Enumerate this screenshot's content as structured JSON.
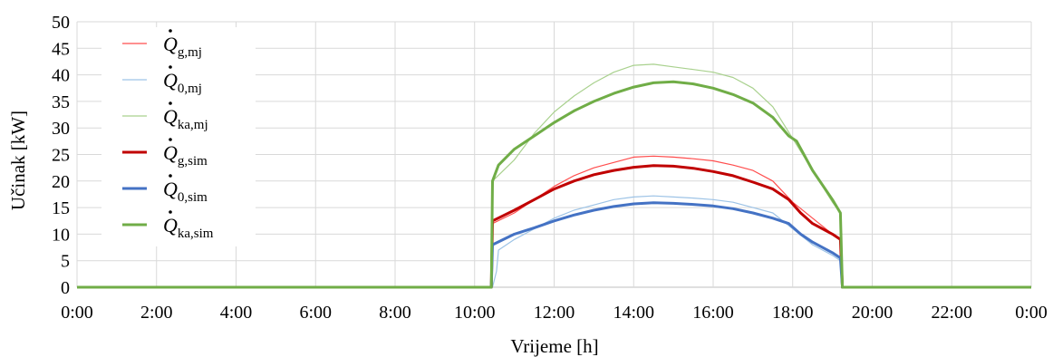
{
  "chart_data": {
    "type": "line",
    "xlabel": "Vrijeme [h]",
    "ylabel": "Učinak [kW]",
    "ylim": [
      0,
      50
    ],
    "y_ticks": [
      "0",
      "5",
      "10",
      "15",
      "20",
      "25",
      "30",
      "35",
      "40",
      "45",
      "50"
    ],
    "xlim": [
      0,
      24
    ],
    "x_ticks": [
      "0:00",
      "2:00",
      "4:00",
      "6:00",
      "8:00",
      "10:00",
      "12:00",
      "14:00",
      "16:00",
      "18:00",
      "20:00",
      "22:00",
      "0:00"
    ],
    "grid": true,
    "legend_position": "top-left",
    "series": [
      {
        "name": "Q̇g,mj",
        "symbol": "Q",
        "subscript": "g,mj",
        "color": "#ff4d4d",
        "weight": "thin",
        "x": [
          0,
          10.42,
          10.45,
          11,
          11.5,
          12,
          12.5,
          13,
          13.5,
          14,
          14.5,
          15,
          15.5,
          16,
          16.5,
          17,
          17.5,
          18,
          18.5,
          19,
          19.2,
          19.25,
          24
        ],
        "y": [
          0,
          0,
          12,
          14,
          16.5,
          19,
          21,
          22.5,
          23.5,
          24.5,
          24.7,
          24.5,
          24.2,
          23.8,
          23,
          22,
          20,
          16,
          13,
          10,
          9,
          0,
          0
        ]
      },
      {
        "name": "Q̇0,mj",
        "symbol": "Q",
        "subscript": "0,mj",
        "color": "#9dc3e6",
        "weight": "thin",
        "x": [
          0,
          10.45,
          10.55,
          10.6,
          11,
          11.5,
          12,
          12.5,
          13,
          13.5,
          14,
          14.5,
          15,
          15.5,
          16,
          16.5,
          17,
          17.5,
          18,
          18.5,
          19,
          19.2,
          19.25,
          24
        ],
        "y": [
          0,
          0,
          3,
          7,
          9,
          11,
          13,
          14.5,
          15.5,
          16.5,
          17,
          17.2,
          17,
          16.8,
          16.5,
          16,
          15,
          14,
          11,
          8,
          6,
          5,
          0,
          0
        ]
      },
      {
        "name": "Q̇ka,mj",
        "symbol": "Q",
        "subscript": "ka,mj",
        "color": "#a9d18e",
        "weight": "thin",
        "x": [
          0,
          10.42,
          10.45,
          11,
          11.5,
          12,
          12.5,
          13,
          13.5,
          14,
          14.5,
          15,
          15.5,
          16,
          16.5,
          17,
          17.5,
          18,
          18.5,
          19,
          19.2,
          19.25,
          24
        ],
        "y": [
          0,
          0,
          20,
          24,
          29,
          33,
          36,
          38.5,
          40.5,
          41.8,
          42,
          41.5,
          41,
          40.5,
          39.5,
          37.5,
          34,
          28,
          22,
          16,
          14,
          0,
          0
        ]
      },
      {
        "name": "Q̇g,sim",
        "symbol": "Q",
        "subscript": "g,sim",
        "color": "#c00000",
        "weight": "thick",
        "x": [
          0,
          10.42,
          10.45,
          11,
          11.5,
          12,
          12.5,
          13,
          13.5,
          14,
          14.5,
          15,
          15.5,
          16,
          16.5,
          17,
          17.5,
          17.9,
          18.2,
          18.5,
          19,
          19.2,
          19.25,
          24
        ],
        "y": [
          0,
          0,
          12.5,
          14.5,
          16.5,
          18.5,
          20,
          21.2,
          22,
          22.6,
          22.9,
          22.8,
          22.4,
          21.8,
          21,
          19.8,
          18.5,
          16.5,
          14,
          12,
          10,
          9,
          0,
          0
        ]
      },
      {
        "name": "Q̇0,sim",
        "symbol": "Q",
        "subscript": "0,sim",
        "color": "#4472c4",
        "weight": "thick",
        "x": [
          0,
          10.42,
          10.45,
          11,
          11.5,
          12,
          12.5,
          13,
          13.5,
          14,
          14.5,
          15,
          15.5,
          16,
          16.5,
          17,
          17.5,
          17.9,
          18.2,
          18.5,
          19,
          19.2,
          19.25,
          24
        ],
        "y": [
          0,
          0,
          8,
          10,
          11.2,
          12.5,
          13.6,
          14.5,
          15.2,
          15.7,
          15.9,
          15.8,
          15.6,
          15.3,
          14.8,
          14,
          13,
          12,
          10,
          8.5,
          6.5,
          5.5,
          0,
          0
        ]
      },
      {
        "name": "Q̇ka,sim",
        "symbol": "Q",
        "subscript": "ka,sim",
        "color": "#70ad47",
        "weight": "thick",
        "x": [
          0,
          10.42,
          10.45,
          10.6,
          11,
          11.5,
          12,
          12.5,
          13,
          13.5,
          14,
          14.5,
          15,
          15.5,
          16,
          16.5,
          17,
          17.5,
          17.9,
          18.1,
          18.5,
          19,
          19.2,
          19.25,
          24
        ],
        "y": [
          0,
          0,
          20,
          23,
          26,
          28.5,
          31,
          33.2,
          35,
          36.5,
          37.7,
          38.5,
          38.7,
          38.3,
          37.5,
          36.3,
          34.7,
          32,
          28.5,
          27.5,
          22,
          16.5,
          14,
          0,
          0
        ]
      }
    ]
  }
}
